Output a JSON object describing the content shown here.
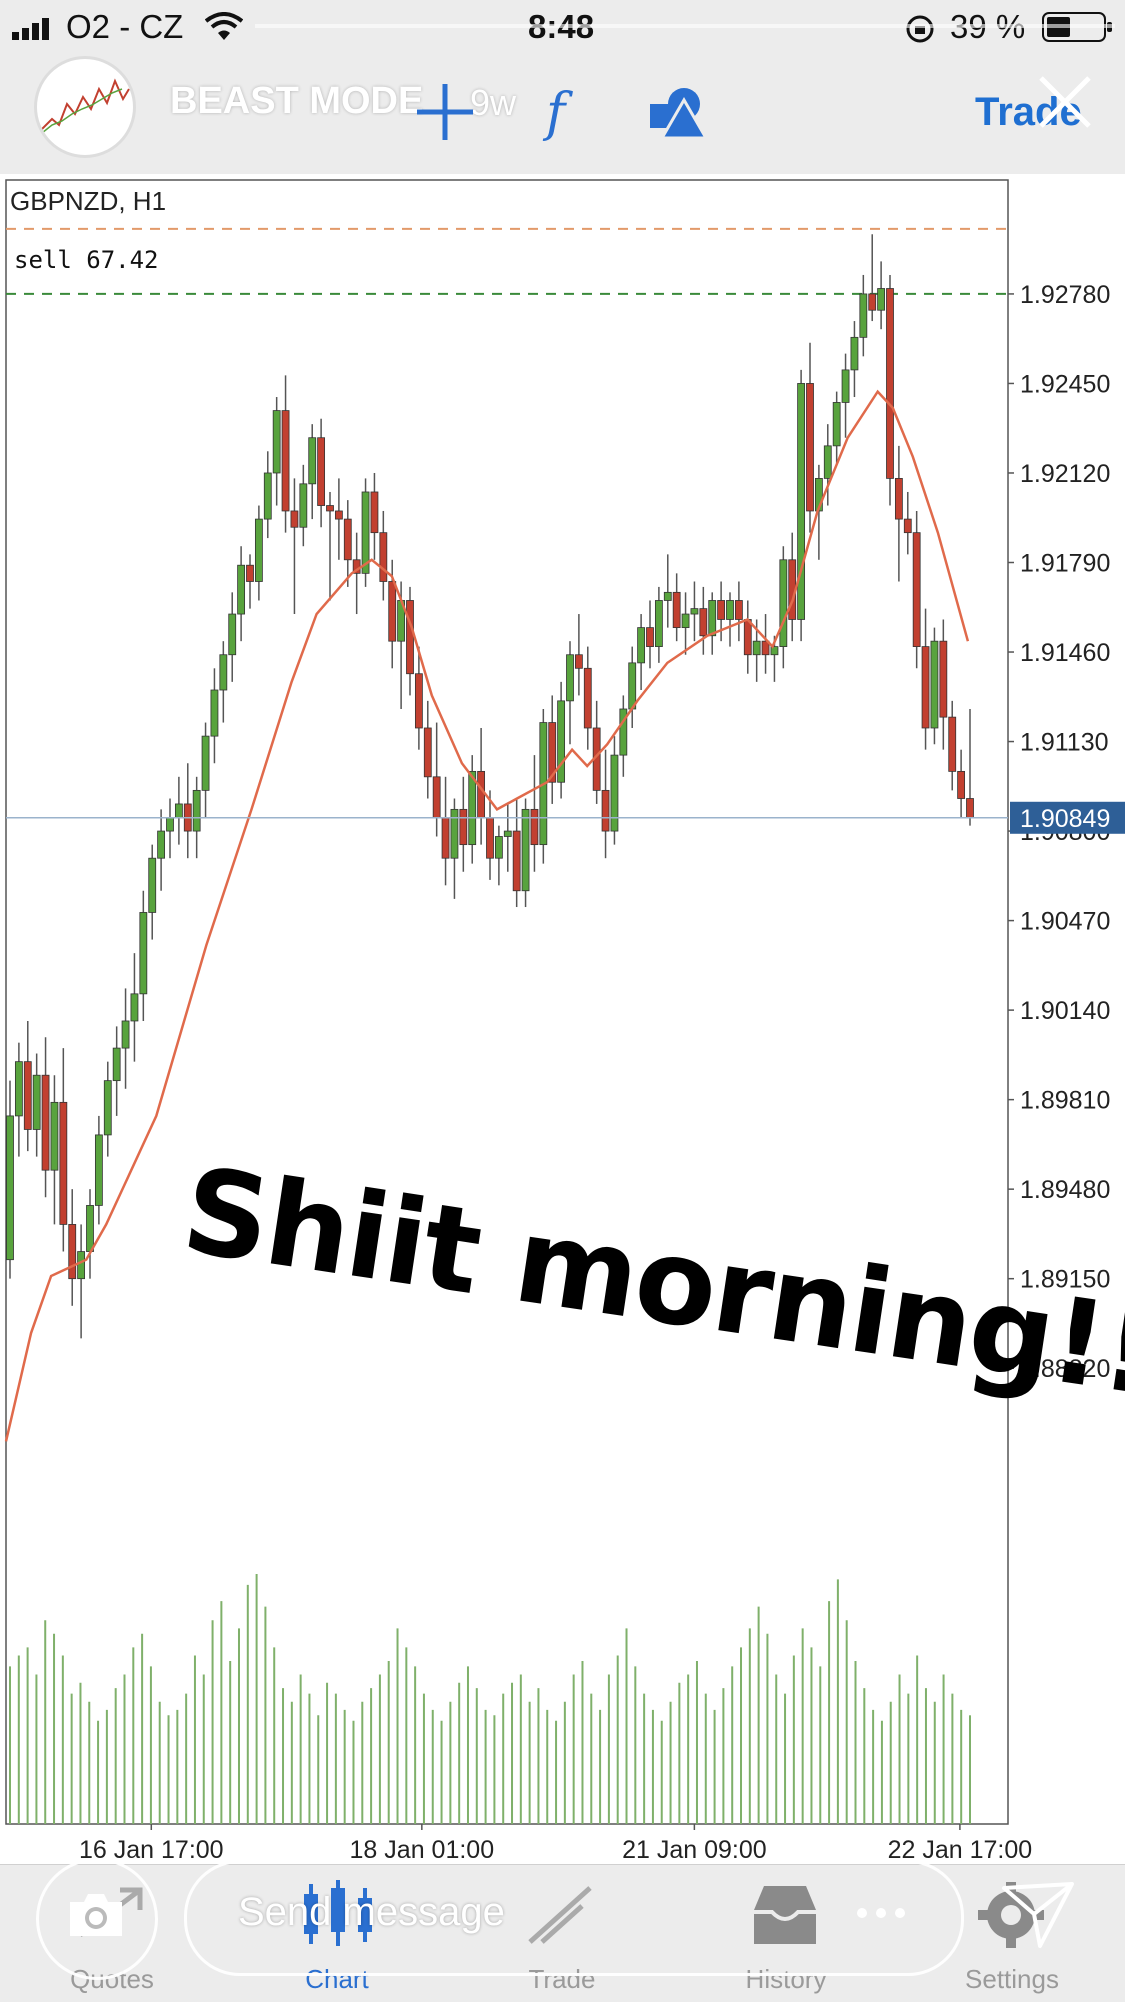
{
  "status_bar": {
    "carrier": "O2 - CZ",
    "time": "8:48",
    "battery": "39 %"
  },
  "story": {
    "username": "BEAST MODE",
    "time_ago": "9w",
    "overlay_text": "Shiit morning!!!!!",
    "message_placeholder": "Send message"
  },
  "toolbar": {
    "trade_label": "Trade",
    "icons": [
      "crosshair-icon",
      "function-icon",
      "objects-icon"
    ]
  },
  "chart_data": {
    "type": "candlestick",
    "symbol": "GBPNZD, H1",
    "sell_label": "sell 67.42",
    "current_price": "1.90849",
    "y_ticks": [
      "1.92780",
      "1.92450",
      "1.92120",
      "1.91790",
      "1.91460",
      "1.91130",
      "1.90800",
      "1.90470",
      "1.90140",
      "1.89810",
      "1.89480",
      "1.89150",
      "1.88820"
    ],
    "ylim": [
      1.8843,
      1.932
    ],
    "x_ticks": [
      {
        "label": "16 Jan 17:00",
        "x": 0.145
      },
      {
        "label": "18 Jan 01:00",
        "x": 0.415
      },
      {
        "label": "21 Jan 09:00",
        "x": 0.687
      },
      {
        "label": "22 Jan 17:00",
        "x": 0.952
      }
    ],
    "sell_level": 1.9278,
    "upper_dashed_level": 1.9302,
    "candles": [
      [
        1.8922,
        1.8988,
        1.8915,
        1.8975
      ],
      [
        1.8975,
        1.9002,
        1.896,
        1.8995
      ],
      [
        1.8995,
        1.901,
        1.8962,
        1.897
      ],
      [
        1.897,
        1.8998,
        1.896,
        1.899
      ],
      [
        1.899,
        1.9004,
        1.8945,
        1.8955
      ],
      [
        1.8955,
        1.899,
        1.8935,
        1.898
      ],
      [
        1.898,
        1.9,
        1.8925,
        1.8935
      ],
      [
        1.8935,
        1.8948,
        1.8905,
        1.8915
      ],
      [
        1.8915,
        1.8935,
        1.8893,
        1.8925
      ],
      [
        1.8925,
        1.8948,
        1.8915,
        1.8942
      ],
      [
        1.8942,
        1.8975,
        1.8935,
        1.8968
      ],
      [
        1.8968,
        1.8995,
        1.896,
        1.8988
      ],
      [
        1.8988,
        1.9008,
        1.8975,
        1.9
      ],
      [
        1.9,
        1.9022,
        1.8985,
        1.901
      ],
      [
        1.901,
        1.9035,
        1.8995,
        1.902
      ],
      [
        1.902,
        1.9058,
        1.901,
        1.905
      ],
      [
        1.905,
        1.9075,
        1.904,
        1.907
      ],
      [
        1.907,
        1.9088,
        1.9058,
        1.908
      ],
      [
        1.908,
        1.9092,
        1.907,
        1.9085
      ],
      [
        1.9085,
        1.91,
        1.9075,
        1.909
      ],
      [
        1.909,
        1.9105,
        1.907,
        1.908
      ],
      [
        1.908,
        1.91,
        1.907,
        1.9095
      ],
      [
        1.9095,
        1.912,
        1.9085,
        1.9115
      ],
      [
        1.9115,
        1.914,
        1.9105,
        1.9132
      ],
      [
        1.9132,
        1.915,
        1.912,
        1.9145
      ],
      [
        1.9145,
        1.9168,
        1.9135,
        1.916
      ],
      [
        1.916,
        1.9185,
        1.915,
        1.9178
      ],
      [
        1.9178,
        1.9182,
        1.9162,
        1.9172
      ],
      [
        1.9172,
        1.92,
        1.9165,
        1.9195
      ],
      [
        1.9195,
        1.922,
        1.9188,
        1.9212
      ],
      [
        1.9212,
        1.924,
        1.92,
        1.9235
      ],
      [
        1.9235,
        1.9248,
        1.919,
        1.9198
      ],
      [
        1.9198,
        1.921,
        1.916,
        1.9192
      ],
      [
        1.9192,
        1.9215,
        1.9185,
        1.9208
      ],
      [
        1.9208,
        1.923,
        1.9195,
        1.9225
      ],
      [
        1.9225,
        1.9232,
        1.9192,
        1.92
      ],
      [
        1.92,
        1.9205,
        1.9165,
        1.9198
      ],
      [
        1.9198,
        1.921,
        1.918,
        1.9195
      ],
      [
        1.9195,
        1.9202,
        1.917,
        1.918
      ],
      [
        1.918,
        1.919,
        1.916,
        1.9175
      ],
      [
        1.9175,
        1.921,
        1.917,
        1.9205
      ],
      [
        1.9205,
        1.9212,
        1.918,
        1.919
      ],
      [
        1.919,
        1.9198,
        1.9165,
        1.9172
      ],
      [
        1.9172,
        1.918,
        1.914,
        1.915
      ],
      [
        1.915,
        1.9172,
        1.9125,
        1.9165
      ],
      [
        1.9165,
        1.917,
        1.913,
        1.9138
      ],
      [
        1.9138,
        1.9148,
        1.911,
        1.9118
      ],
      [
        1.9118,
        1.9128,
        1.9092,
        1.91
      ],
      [
        1.91,
        1.912,
        1.9078,
        1.9085
      ],
      [
        1.9085,
        1.91,
        1.906,
        1.907
      ],
      [
        1.907,
        1.9092,
        1.9055,
        1.9088
      ],
      [
        1.9088,
        1.91,
        1.9065,
        1.9075
      ],
      [
        1.9075,
        1.9108,
        1.9068,
        1.9102
      ],
      [
        1.9102,
        1.9118,
        1.9075,
        1.9085
      ],
      [
        1.9085,
        1.9095,
        1.9062,
        1.907
      ],
      [
        1.907,
        1.9082,
        1.906,
        1.9078
      ],
      [
        1.9078,
        1.909,
        1.9065,
        1.908
      ],
      [
        1.908,
        1.9092,
        1.9052,
        1.9058
      ],
      [
        1.9058,
        1.9092,
        1.9052,
        1.9088
      ],
      [
        1.9088,
        1.9108,
        1.9065,
        1.9075
      ],
      [
        1.9075,
        1.9125,
        1.9068,
        1.912
      ],
      [
        1.912,
        1.913,
        1.909,
        1.9098
      ],
      [
        1.9098,
        1.9135,
        1.9092,
        1.9128
      ],
      [
        1.9128,
        1.915,
        1.9112,
        1.9145
      ],
      [
        1.9145,
        1.916,
        1.913,
        1.914
      ],
      [
        1.914,
        1.9148,
        1.911,
        1.9118
      ],
      [
        1.9118,
        1.9128,
        1.909,
        1.9095
      ],
      [
        1.9095,
        1.911,
        1.907,
        1.908
      ],
      [
        1.908,
        1.9115,
        1.9075,
        1.9108
      ],
      [
        1.9108,
        1.913,
        1.91,
        1.9125
      ],
      [
        1.9125,
        1.9148,
        1.9118,
        1.9142
      ],
      [
        1.9142,
        1.916,
        1.9132,
        1.9155
      ],
      [
        1.9155,
        1.9165,
        1.914,
        1.9148
      ],
      [
        1.9148,
        1.917,
        1.9142,
        1.9165
      ],
      [
        1.9165,
        1.9182,
        1.9155,
        1.9168
      ],
      [
        1.9168,
        1.9175,
        1.915,
        1.9155
      ],
      [
        1.9155,
        1.9168,
        1.9145,
        1.916
      ],
      [
        1.916,
        1.9172,
        1.915,
        1.9162
      ],
      [
        1.9162,
        1.917,
        1.9145,
        1.9152
      ],
      [
        1.9152,
        1.9168,
        1.9145,
        1.9165
      ],
      [
        1.9165,
        1.9172,
        1.915,
        1.9158
      ],
      [
        1.9158,
        1.9168,
        1.9148,
        1.9165
      ],
      [
        1.9165,
        1.9172,
        1.915,
        1.9158
      ],
      [
        1.9158,
        1.9165,
        1.9138,
        1.9145
      ],
      [
        1.9145,
        1.9158,
        1.9135,
        1.915
      ],
      [
        1.915,
        1.916,
        1.9138,
        1.9145
      ],
      [
        1.9145,
        1.9152,
        1.9135,
        1.9148
      ],
      [
        1.9148,
        1.9185,
        1.914,
        1.918
      ],
      [
        1.918,
        1.919,
        1.915,
        1.9158
      ],
      [
        1.9158,
        1.925,
        1.915,
        1.9245
      ],
      [
        1.9245,
        1.926,
        1.919,
        1.9198
      ],
      [
        1.9198,
        1.9215,
        1.918,
        1.921
      ],
      [
        1.921,
        1.923,
        1.92,
        1.9222
      ],
      [
        1.9222,
        1.9242,
        1.9215,
        1.9238
      ],
      [
        1.9238,
        1.9256,
        1.9225,
        1.925
      ],
      [
        1.925,
        1.9268,
        1.924,
        1.9262
      ],
      [
        1.9262,
        1.9285,
        1.9255,
        1.9278
      ],
      [
        1.9278,
        1.93,
        1.9268,
        1.9272
      ],
      [
        1.9272,
        1.929,
        1.9265,
        1.928
      ],
      [
        1.928,
        1.9285,
        1.92,
        1.921
      ],
      [
        1.921,
        1.9222,
        1.9172,
        1.9195
      ],
      [
        1.9195,
        1.9205,
        1.9182,
        1.919
      ],
      [
        1.919,
        1.9198,
        1.914,
        1.9148
      ],
      [
        1.9148,
        1.9162,
        1.911,
        1.9118
      ],
      [
        1.9118,
        1.9155,
        1.9112,
        1.915
      ],
      [
        1.915,
        1.9158,
        1.911,
        1.9122
      ],
      [
        1.9122,
        1.9128,
        1.9095,
        1.9102
      ],
      [
        1.9102,
        1.911,
        1.9085,
        1.9092
      ],
      [
        1.9092,
        1.9125,
        1.9082,
        1.9085
      ]
    ],
    "ma_points": [
      [
        0.0,
        1.8855
      ],
      [
        0.025,
        1.8895
      ],
      [
        0.045,
        1.8916
      ],
      [
        0.08,
        1.8922
      ],
      [
        0.1,
        1.8935
      ],
      [
        0.15,
        1.8975
      ],
      [
        0.2,
        1.9038
      ],
      [
        0.245,
        1.9088
      ],
      [
        0.285,
        1.9135
      ],
      [
        0.31,
        1.916
      ],
      [
        0.345,
        1.9175
      ],
      [
        0.365,
        1.918
      ],
      [
        0.385,
        1.9174
      ],
      [
        0.405,
        1.9155
      ],
      [
        0.425,
        1.913
      ],
      [
        0.455,
        1.9105
      ],
      [
        0.49,
        1.9088
      ],
      [
        0.51,
        1.9092
      ],
      [
        0.54,
        1.9098
      ],
      [
        0.565,
        1.911
      ],
      [
        0.58,
        1.9104
      ],
      [
        0.6,
        1.9112
      ],
      [
        0.63,
        1.9128
      ],
      [
        0.66,
        1.9142
      ],
      [
        0.7,
        1.9152
      ],
      [
        0.74,
        1.9158
      ],
      [
        0.765,
        1.9148
      ],
      [
        0.785,
        1.9165
      ],
      [
        0.81,
        1.9198
      ],
      [
        0.84,
        1.9225
      ],
      [
        0.87,
        1.9242
      ],
      [
        0.885,
        1.9236
      ],
      [
        0.905,
        1.9218
      ],
      [
        0.93,
        1.919
      ],
      [
        0.96,
        1.915
      ]
    ],
    "volumes": [
      58,
      62,
      65,
      55,
      75,
      70,
      62,
      48,
      52,
      45,
      38,
      42,
      50,
      55,
      65,
      70,
      58,
      45,
      40,
      42,
      48,
      62,
      55,
      75,
      82,
      60,
      72,
      88,
      92,
      80,
      65,
      50,
      45,
      55,
      48,
      40,
      52,
      48,
      42,
      38,
      45,
      50,
      55,
      60,
      72,
      65,
      58,
      48,
      42,
      38,
      45,
      52,
      58,
      50,
      42,
      40,
      48,
      52,
      55,
      45,
      50,
      42,
      38,
      45,
      55,
      60,
      48,
      42,
      55,
      62,
      72,
      58,
      48,
      42,
      38,
      45,
      52,
      55,
      60,
      48,
      42,
      50,
      58,
      65,
      72,
      80,
      70,
      55,
      48,
      62,
      72,
      65,
      58,
      82,
      90,
      75,
      60,
      50,
      42,
      38,
      45,
      55,
      48,
      62,
      50,
      45,
      55,
      48,
      42,
      40
    ],
    "colors": {
      "bull": "#58a33d",
      "bear": "#c24030",
      "ma": "#e06a4b",
      "volume": "#7fb06a",
      "current_price_bg": "#2e5f97",
      "sell_line": "#3a8a3a",
      "upper_line": "#e29a6a"
    }
  },
  "bottom_nav": {
    "items": [
      {
        "label": "Quotes",
        "active": false
      },
      {
        "label": "Chart",
        "active": true
      },
      {
        "label": "Trade",
        "active": false
      },
      {
        "label": "History",
        "active": false
      },
      {
        "label": "Settings",
        "active": false
      }
    ]
  }
}
